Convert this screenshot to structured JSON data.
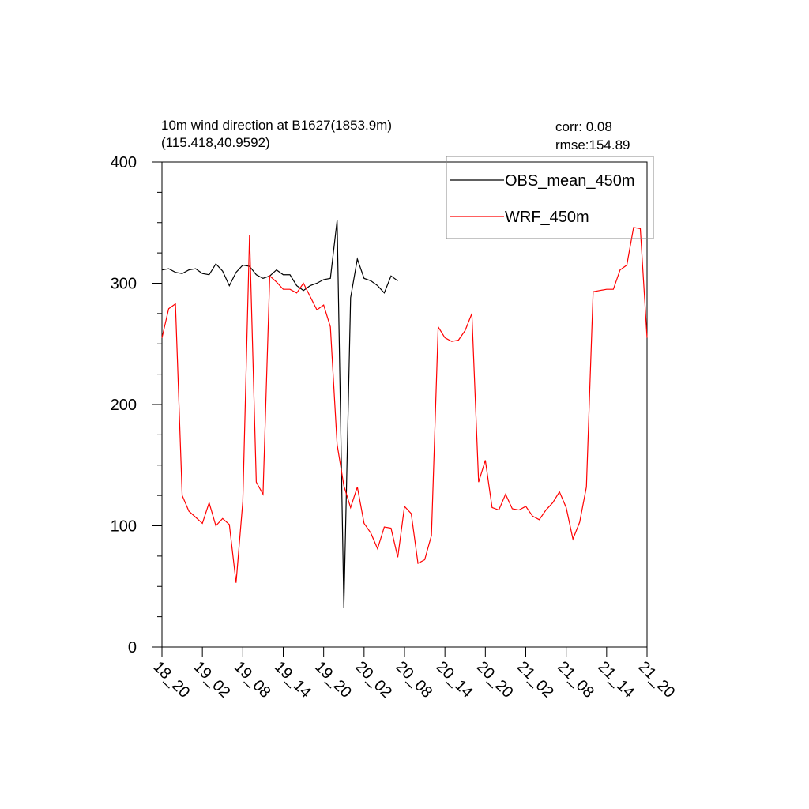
{
  "chart_data": {
    "type": "line",
    "title": "10m wind direction at B1627(1853.9m)",
    "subtitle": "(115.418,40.9592)",
    "annotations": [
      "corr:  0.08",
      "rmse:154.89"
    ],
    "categories": [
      "18_20",
      null,
      null,
      null,
      null,
      null,
      "19_02",
      null,
      null,
      null,
      null,
      null,
      "19_08",
      null,
      null,
      null,
      null,
      null,
      "19_14",
      null,
      null,
      null,
      null,
      null,
      "19_20",
      null,
      null,
      null,
      null,
      null,
      "20_02",
      null,
      null,
      null,
      null,
      null,
      "20_08",
      null,
      null,
      null,
      null,
      null,
      "20_14",
      null,
      null,
      null,
      null,
      null,
      "20_20",
      null,
      null,
      null,
      null,
      null,
      "21_02",
      null,
      null,
      null,
      null,
      null,
      "21_08",
      null,
      null,
      null,
      null,
      null,
      "21_14",
      null,
      null,
      null,
      null,
      null,
      "21_20"
    ],
    "series": [
      {
        "name": "OBS_mean_450m",
        "color": "#000000",
        "values": [
          311,
          312,
          309,
          308,
          311,
          312,
          308,
          307,
          316,
          310,
          298,
          309,
          315,
          314,
          307,
          304,
          306,
          311,
          307,
          307,
          298,
          294,
          298,
          300,
          303,
          304,
          352,
          32,
          288,
          320,
          304,
          302,
          298,
          292,
          306,
          302,
          null,
          null,
          null,
          null,
          null,
          null,
          null,
          null,
          null,
          null,
          null,
          null,
          null,
          null,
          null,
          null,
          null,
          null,
          null,
          null,
          null,
          null,
          null,
          null,
          null,
          null,
          null,
          null,
          null,
          null,
          null,
          null,
          null,
          null,
          null,
          null,
          null
        ]
      },
      {
        "name": "WRF_450m",
        "color": "#ff0000",
        "values": [
          255,
          279,
          283,
          125,
          112,
          107,
          102,
          119,
          100,
          106,
          101,
          53,
          120,
          340,
          136,
          126,
          306,
          301,
          295,
          295,
          292,
          300,
          289,
          278,
          282,
          264,
          167,
          133,
          115,
          132,
          102,
          94,
          81,
          99,
          98,
          74,
          116,
          110,
          69,
          72,
          92,
          264,
          255,
          252,
          253,
          261,
          275,
          136,
          154,
          115,
          113,
          126,
          114,
          113,
          116,
          108,
          105,
          113,
          119,
          128,
          115,
          89,
          103,
          132,
          293,
          294,
          295,
          295,
          311,
          315,
          346,
          345,
          255
        ]
      }
    ],
    "ylim": [
      0,
      400
    ],
    "yticks": [
      0,
      100,
      200,
      300,
      400
    ],
    "yminorticks": [
      25,
      50,
      75,
      125,
      150,
      175,
      225,
      250,
      275,
      325,
      350,
      375
    ],
    "legend": "top-right"
  }
}
